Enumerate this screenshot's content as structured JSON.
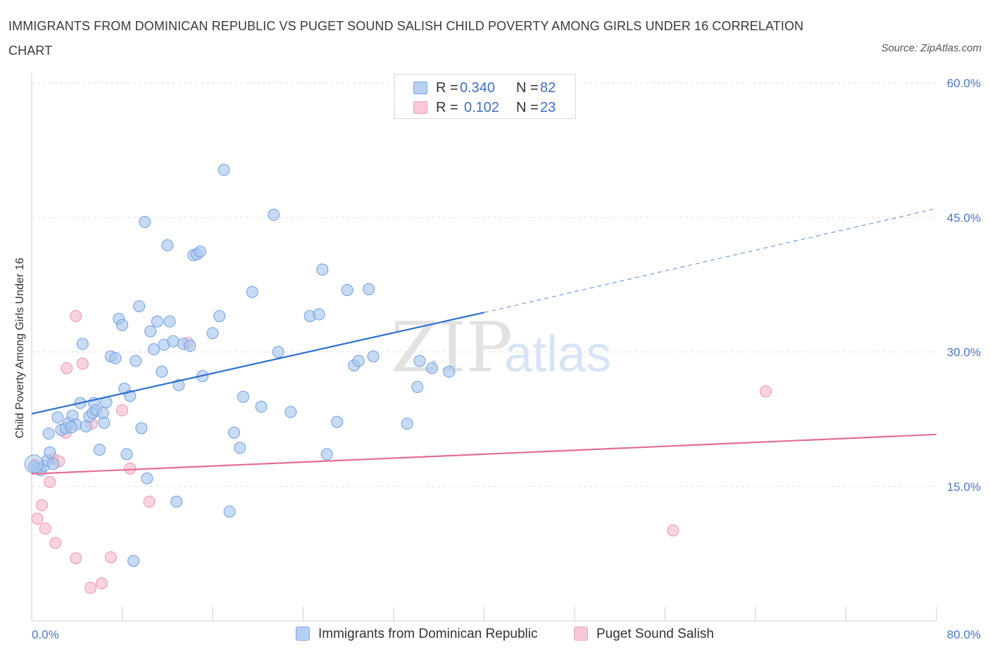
{
  "header": {
    "title": "IMMIGRANTS FROM DOMINICAN REPUBLIC VS PUGET SOUND SALISH CHILD POVERTY AMONG GIRLS UNDER 16 CORRELATION CHART",
    "source": "Source: ZipAtlas.com"
  },
  "watermark": {
    "zip": "ZIP",
    "atlas": "atlas"
  },
  "legend": {
    "r_label": "R =",
    "n_label": "N =",
    "rows": [
      {
        "r": "0.340",
        "n": "82"
      },
      {
        "r": "0.102",
        "n": "23"
      }
    ]
  },
  "colors": {
    "blue_fill": "#aac8ee",
    "blue_stroke": "#6f9ee0",
    "blue_line": "#2d6fcf",
    "pink_fill": "#f6c0d0",
    "pink_stroke": "#e995b0",
    "pink_line": "#e36d96",
    "grid": "#dddddd",
    "tick_text": "#4a78c8"
  },
  "chart_data": {
    "type": "scatter",
    "title": "IMMIGRANTS FROM DOMINICAN REPUBLIC VS PUGET SOUND SALISH CHILD POVERTY AMONG GIRLS UNDER 16 CORRELATION CHART",
    "xlabel": "",
    "ylabel": "Child Poverty Among Girls Under 16",
    "xlim": [
      0,
      80
    ],
    "ylim": [
      0,
      60
    ],
    "x_tick_labels": [
      "0.0%",
      "80.0%"
    ],
    "y_ticks": [
      15,
      30,
      45,
      60
    ],
    "y_tick_labels": [
      "15.0%",
      "30.0%",
      "45.0%",
      "60.0%"
    ],
    "legend_position": "top-center",
    "series": [
      {
        "name": "Immigrants from Dominican Republic",
        "r": 0.34,
        "n": 82,
        "trend": {
          "x0": 0,
          "y0": 23.1,
          "x1": 40,
          "y1": 34.4,
          "dashed_to_x": 80,
          "dashed_to_y": 46.0
        },
        "points": [
          [
            0.2,
            17.2
          ],
          [
            0.5,
            17.0
          ],
          [
            0.8,
            16.8
          ],
          [
            1.1,
            17.3
          ],
          [
            1.4,
            17.9
          ],
          [
            1.6,
            18.8
          ],
          [
            1.5,
            20.9
          ],
          [
            2.3,
            22.7
          ],
          [
            2.6,
            21.3
          ],
          [
            3.0,
            21.5
          ],
          [
            3.3,
            22.1
          ],
          [
            3.6,
            22.9
          ],
          [
            3.9,
            21.9
          ],
          [
            4.3,
            24.3
          ],
          [
            4.5,
            30.9
          ],
          [
            4.8,
            21.7
          ],
          [
            5.1,
            22.8
          ],
          [
            5.4,
            23.2
          ],
          [
            5.5,
            24.3
          ],
          [
            5.7,
            23.5
          ],
          [
            6.0,
            19.1
          ],
          [
            6.3,
            23.2
          ],
          [
            6.4,
            22.1
          ],
          [
            6.6,
            24.4
          ],
          [
            7.0,
            29.5
          ],
          [
            7.4,
            29.3
          ],
          [
            7.7,
            33.7
          ],
          [
            8.0,
            33.0
          ],
          [
            8.2,
            25.9
          ],
          [
            8.4,
            18.6
          ],
          [
            8.7,
            25.1
          ],
          [
            9.2,
            29.0
          ],
          [
            9.5,
            35.1
          ],
          [
            9.7,
            21.5
          ],
          [
            10.0,
            44.5
          ],
          [
            10.2,
            15.9
          ],
          [
            10.5,
            32.3
          ],
          [
            10.8,
            30.3
          ],
          [
            11.1,
            33.4
          ],
          [
            11.5,
            27.8
          ],
          [
            11.7,
            30.8
          ],
          [
            12.0,
            41.9
          ],
          [
            12.2,
            33.4
          ],
          [
            12.5,
            31.2
          ],
          [
            12.8,
            13.3
          ],
          [
            13.0,
            26.3
          ],
          [
            13.4,
            30.9
          ],
          [
            14.0,
            30.7
          ],
          [
            14.3,
            40.8
          ],
          [
            14.6,
            40.9
          ],
          [
            14.9,
            41.2
          ],
          [
            15.1,
            27.3
          ],
          [
            16.0,
            32.1
          ],
          [
            16.6,
            34.0
          ],
          [
            17.0,
            50.3
          ],
          [
            17.5,
            12.2
          ],
          [
            17.9,
            21.0
          ],
          [
            18.4,
            19.3
          ],
          [
            18.7,
            25.0
          ],
          [
            19.5,
            36.7
          ],
          [
            20.3,
            23.9
          ],
          [
            21.4,
            45.3
          ],
          [
            21.8,
            30.0
          ],
          [
            22.9,
            23.3
          ],
          [
            24.6,
            34.0
          ],
          [
            25.4,
            34.2
          ],
          [
            25.7,
            39.2
          ],
          [
            26.1,
            18.6
          ],
          [
            27.0,
            22.2
          ],
          [
            27.9,
            36.9
          ],
          [
            28.5,
            28.5
          ],
          [
            28.9,
            29.0
          ],
          [
            29.8,
            37.0
          ],
          [
            30.2,
            29.5
          ],
          [
            33.2,
            22.0
          ],
          [
            34.1,
            26.1
          ],
          [
            34.3,
            29.0
          ],
          [
            35.4,
            28.2
          ],
          [
            36.9,
            27.8
          ],
          [
            9.0,
            6.7
          ],
          [
            1.9,
            17.5
          ],
          [
            3.5,
            21.6
          ]
        ]
      },
      {
        "name": "Puget Sound Salish",
        "r": 0.102,
        "n": 23,
        "trend": {
          "x0": 0,
          "y0": 16.4,
          "x1": 80,
          "y1": 20.8
        },
        "points": [
          [
            0.3,
            17.4
          ],
          [
            0.5,
            11.4
          ],
          [
            0.9,
            12.9
          ],
          [
            1.2,
            10.3
          ],
          [
            1.6,
            15.5
          ],
          [
            1.9,
            18.1
          ],
          [
            2.1,
            8.7
          ],
          [
            2.4,
            17.8
          ],
          [
            3.0,
            21.0
          ],
          [
            3.1,
            28.2
          ],
          [
            3.9,
            7.0
          ],
          [
            3.9,
            34.0
          ],
          [
            4.5,
            28.7
          ],
          [
            5.2,
            3.7
          ],
          [
            5.3,
            22.0
          ],
          [
            6.2,
            4.2
          ],
          [
            7.0,
            7.1
          ],
          [
            8.0,
            23.5
          ],
          [
            8.7,
            17.0
          ],
          [
            10.4,
            13.3
          ],
          [
            13.8,
            31.0
          ],
          [
            56.7,
            10.1
          ],
          [
            64.9,
            25.6
          ]
        ]
      }
    ]
  },
  "bottom_legend": [
    {
      "label": "Immigrants from Dominican Republic"
    },
    {
      "label": "Puget Sound Salish"
    }
  ]
}
